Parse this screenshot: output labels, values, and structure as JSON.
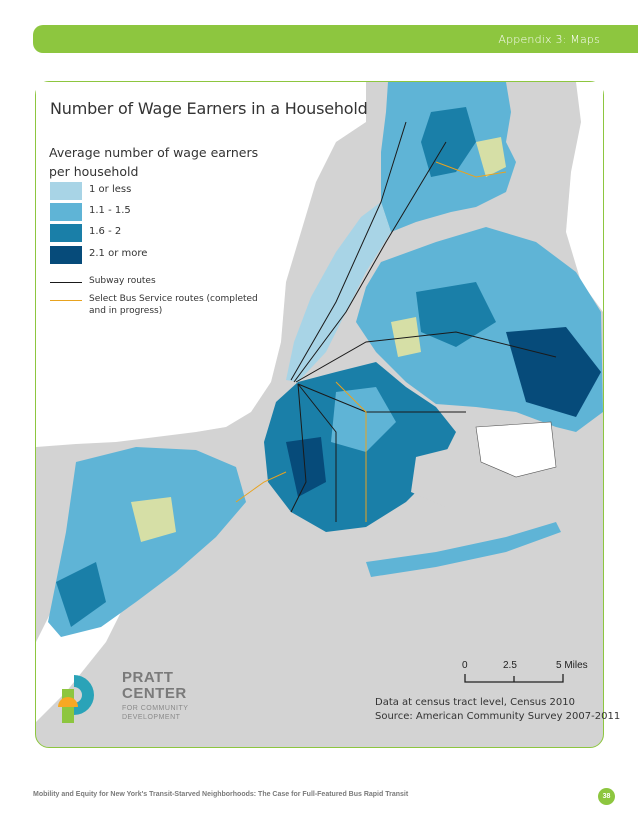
{
  "header": {
    "section": "Appendix 3: Maps"
  },
  "map": {
    "title": "Number of Wage Earners in a Household",
    "legend": {
      "title": "Average number of wage earners per household",
      "classes": [
        {
          "label": "1 or less",
          "color": "#a8d4e6"
        },
        {
          "label": "1.1 - 1.5",
          "color": "#5fb4d6"
        },
        {
          "label": "1.6 - 2",
          "color": "#1a7fa8"
        },
        {
          "label": "2.1 or more",
          "color": "#064b7a"
        }
      ],
      "lines": [
        {
          "label": "Subway routes",
          "color": "#1a1a1a"
        },
        {
          "label": "Select Bus Service routes (completed and in progress)",
          "color": "#e8a31f"
        }
      ]
    },
    "scale_bar": {
      "ticks": [
        "0",
        "2.5",
        "5 Miles"
      ]
    },
    "source": {
      "line1": "Data at census tract level, Census 2010",
      "line2": "Source: American Community Survey 2007-2011"
    },
    "colors": {
      "water": "#d3d3d3",
      "land_outside": "#ffffff",
      "parks": "#d6dfa6",
      "frame": "#8dc63f"
    }
  },
  "logo": {
    "name_line1": "PRATT",
    "name_line2": "CENTER",
    "sub_line1": "FOR COMMUNITY",
    "sub_line2": "DEVELOPMENT"
  },
  "footer": {
    "text": "Mobility and Equity for New York's Transit-Starved Neighborhoods: The Case for Full-Featured Bus Rapid Transit",
    "page_number": "38"
  }
}
